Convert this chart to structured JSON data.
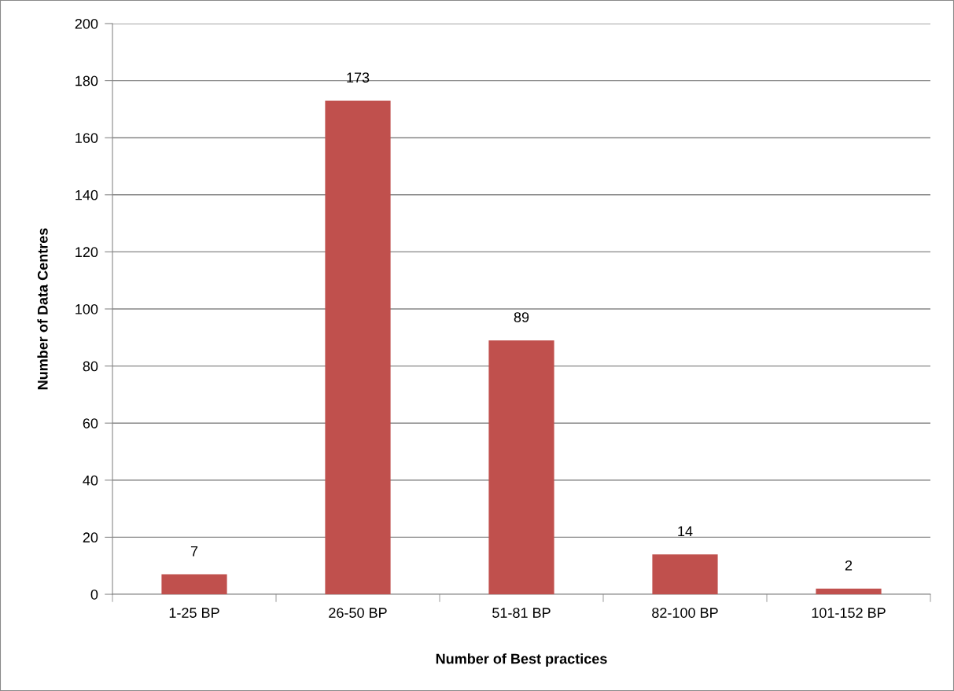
{
  "chart_data": {
    "type": "bar",
    "xlabel": "Number of Best practices",
    "ylabel": "Number of Data Centres",
    "categories": [
      "1-25 BP",
      "26-50 BP",
      "51-81 BP",
      "82-100 BP",
      "101-152 BP"
    ],
    "values": [
      7,
      173,
      89,
      14,
      2
    ],
    "color": "#c0504d",
    "ylim": [
      0,
      200
    ],
    "yticks": [
      0,
      20,
      40,
      60,
      80,
      100,
      120,
      140,
      160,
      180,
      200
    ],
    "grid": "y",
    "data_labels": true
  }
}
